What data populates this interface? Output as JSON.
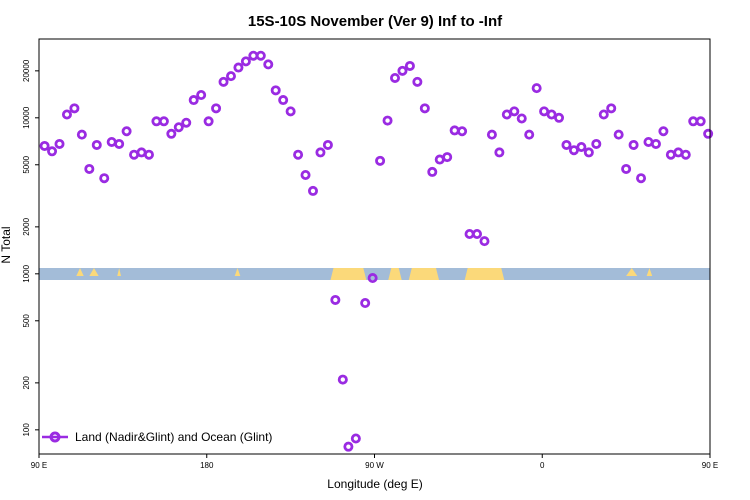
{
  "chart_data": {
    "type": "scatter",
    "title": "15S-10S November (Ver 9)   Inf to -Inf",
    "xlabel": "Longitude (deg E)",
    "ylabel": "N Total",
    "x_scale": "linear",
    "y_scale": "log",
    "xlim": [
      90,
      450
    ],
    "ylim": [
      70,
      32000
    ],
    "x_ticks": [
      {
        "value": 90,
        "label": "90 E"
      },
      {
        "value": 180,
        "label": "180"
      },
      {
        "value": 270,
        "label": "90 W"
      },
      {
        "value": 360,
        "label": "0"
      },
      {
        "value": 450,
        "label": "90 E"
      },
      {
        "value": 540,
        "label": "180"
      }
    ],
    "y_ticks": [
      {
        "value": 100,
        "label": "100"
      },
      {
        "value": 200,
        "label": "200"
      },
      {
        "value": 500,
        "label": "500"
      },
      {
        "value": 1000,
        "label": "1000"
      },
      {
        "value": 2000,
        "label": "2000"
      },
      {
        "value": 5000,
        "label": "5000"
      },
      {
        "value": 10000,
        "label": "10000"
      },
      {
        "value": 20000,
        "label": "20000"
      }
    ],
    "legend": {
      "position": "bottom-left",
      "entries": [
        "Land (Nadir&Glint) and Ocean (Glint)"
      ]
    },
    "grid": false,
    "colors": {
      "series": "#9a2be2",
      "ocean": "#a3bcd8",
      "land": "#fbd97a"
    },
    "series": [
      {
        "name": "Land (Nadir&Glint) and Ocean (Glint)",
        "points": [
          [
            93,
            6600
          ],
          [
            97,
            6100
          ],
          [
            101,
            6800
          ],
          [
            105,
            10500
          ],
          [
            109,
            11500
          ],
          [
            113,
            7800
          ],
          [
            117,
            4700
          ],
          [
            121,
            6700
          ],
          [
            125,
            4100
          ],
          [
            129,
            7000
          ],
          [
            133,
            6800
          ],
          [
            137,
            8200
          ],
          [
            141,
            5800
          ],
          [
            145,
            6000
          ],
          [
            149,
            5800
          ],
          [
            153,
            9500
          ],
          [
            157,
            9500
          ],
          [
            161,
            7900
          ],
          [
            165,
            8700
          ],
          [
            169,
            9300
          ],
          [
            173,
            13000
          ],
          [
            177,
            14000
          ],
          [
            181,
            9500
          ],
          [
            185,
            11500
          ],
          [
            189,
            17000
          ],
          [
            193,
            18500
          ],
          [
            197,
            21000
          ],
          [
            201,
            23000
          ],
          [
            205,
            25000
          ],
          [
            209,
            25000
          ],
          [
            213,
            22000
          ],
          [
            217,
            15000
          ],
          [
            221,
            13000
          ],
          [
            225,
            11000
          ],
          [
            229,
            5800
          ],
          [
            233,
            4300
          ],
          [
            237,
            3400
          ],
          [
            241,
            6000
          ],
          [
            245,
            6700
          ],
          [
            249,
            680
          ],
          [
            253,
            210
          ],
          [
            256,
            78
          ],
          [
            260,
            88
          ],
          [
            265,
            650
          ],
          [
            269,
            940
          ],
          [
            273,
            5300
          ],
          [
            277,
            9600
          ],
          [
            281,
            18000
          ],
          [
            285,
            20000
          ],
          [
            289,
            21500
          ],
          [
            293,
            17000
          ],
          [
            297,
            11500
          ],
          [
            301,
            4500
          ],
          [
            305,
            5400
          ],
          [
            309,
            5600
          ],
          [
            313,
            8300
          ],
          [
            317,
            8200
          ],
          [
            321,
            1800
          ],
          [
            325,
            1800
          ],
          [
            329,
            1620
          ],
          [
            333,
            7800
          ],
          [
            337,
            6000
          ],
          [
            341,
            10500
          ],
          [
            345,
            11000
          ],
          [
            349,
            9900
          ],
          [
            353,
            7800
          ],
          [
            357,
            15500
          ],
          [
            361,
            11000
          ],
          [
            365,
            10500
          ],
          [
            369,
            10000
          ],
          [
            373,
            6700
          ],
          [
            377,
            6200
          ],
          [
            381,
            6500
          ],
          [
            385,
            6000
          ],
          [
            389,
            6800
          ],
          [
            393,
            10500
          ],
          [
            397,
            11500
          ],
          [
            401,
            7800
          ],
          [
            405,
            4700
          ],
          [
            409,
            6700
          ],
          [
            413,
            4100
          ],
          [
            417,
            7000
          ],
          [
            421,
            6800
          ],
          [
            425,
            8200
          ],
          [
            429,
            5800
          ],
          [
            433,
            6000
          ],
          [
            437,
            5800
          ],
          [
            441,
            9500
          ],
          [
            445,
            9500
          ],
          [
            449,
            7900
          ]
        ]
      }
    ]
  }
}
